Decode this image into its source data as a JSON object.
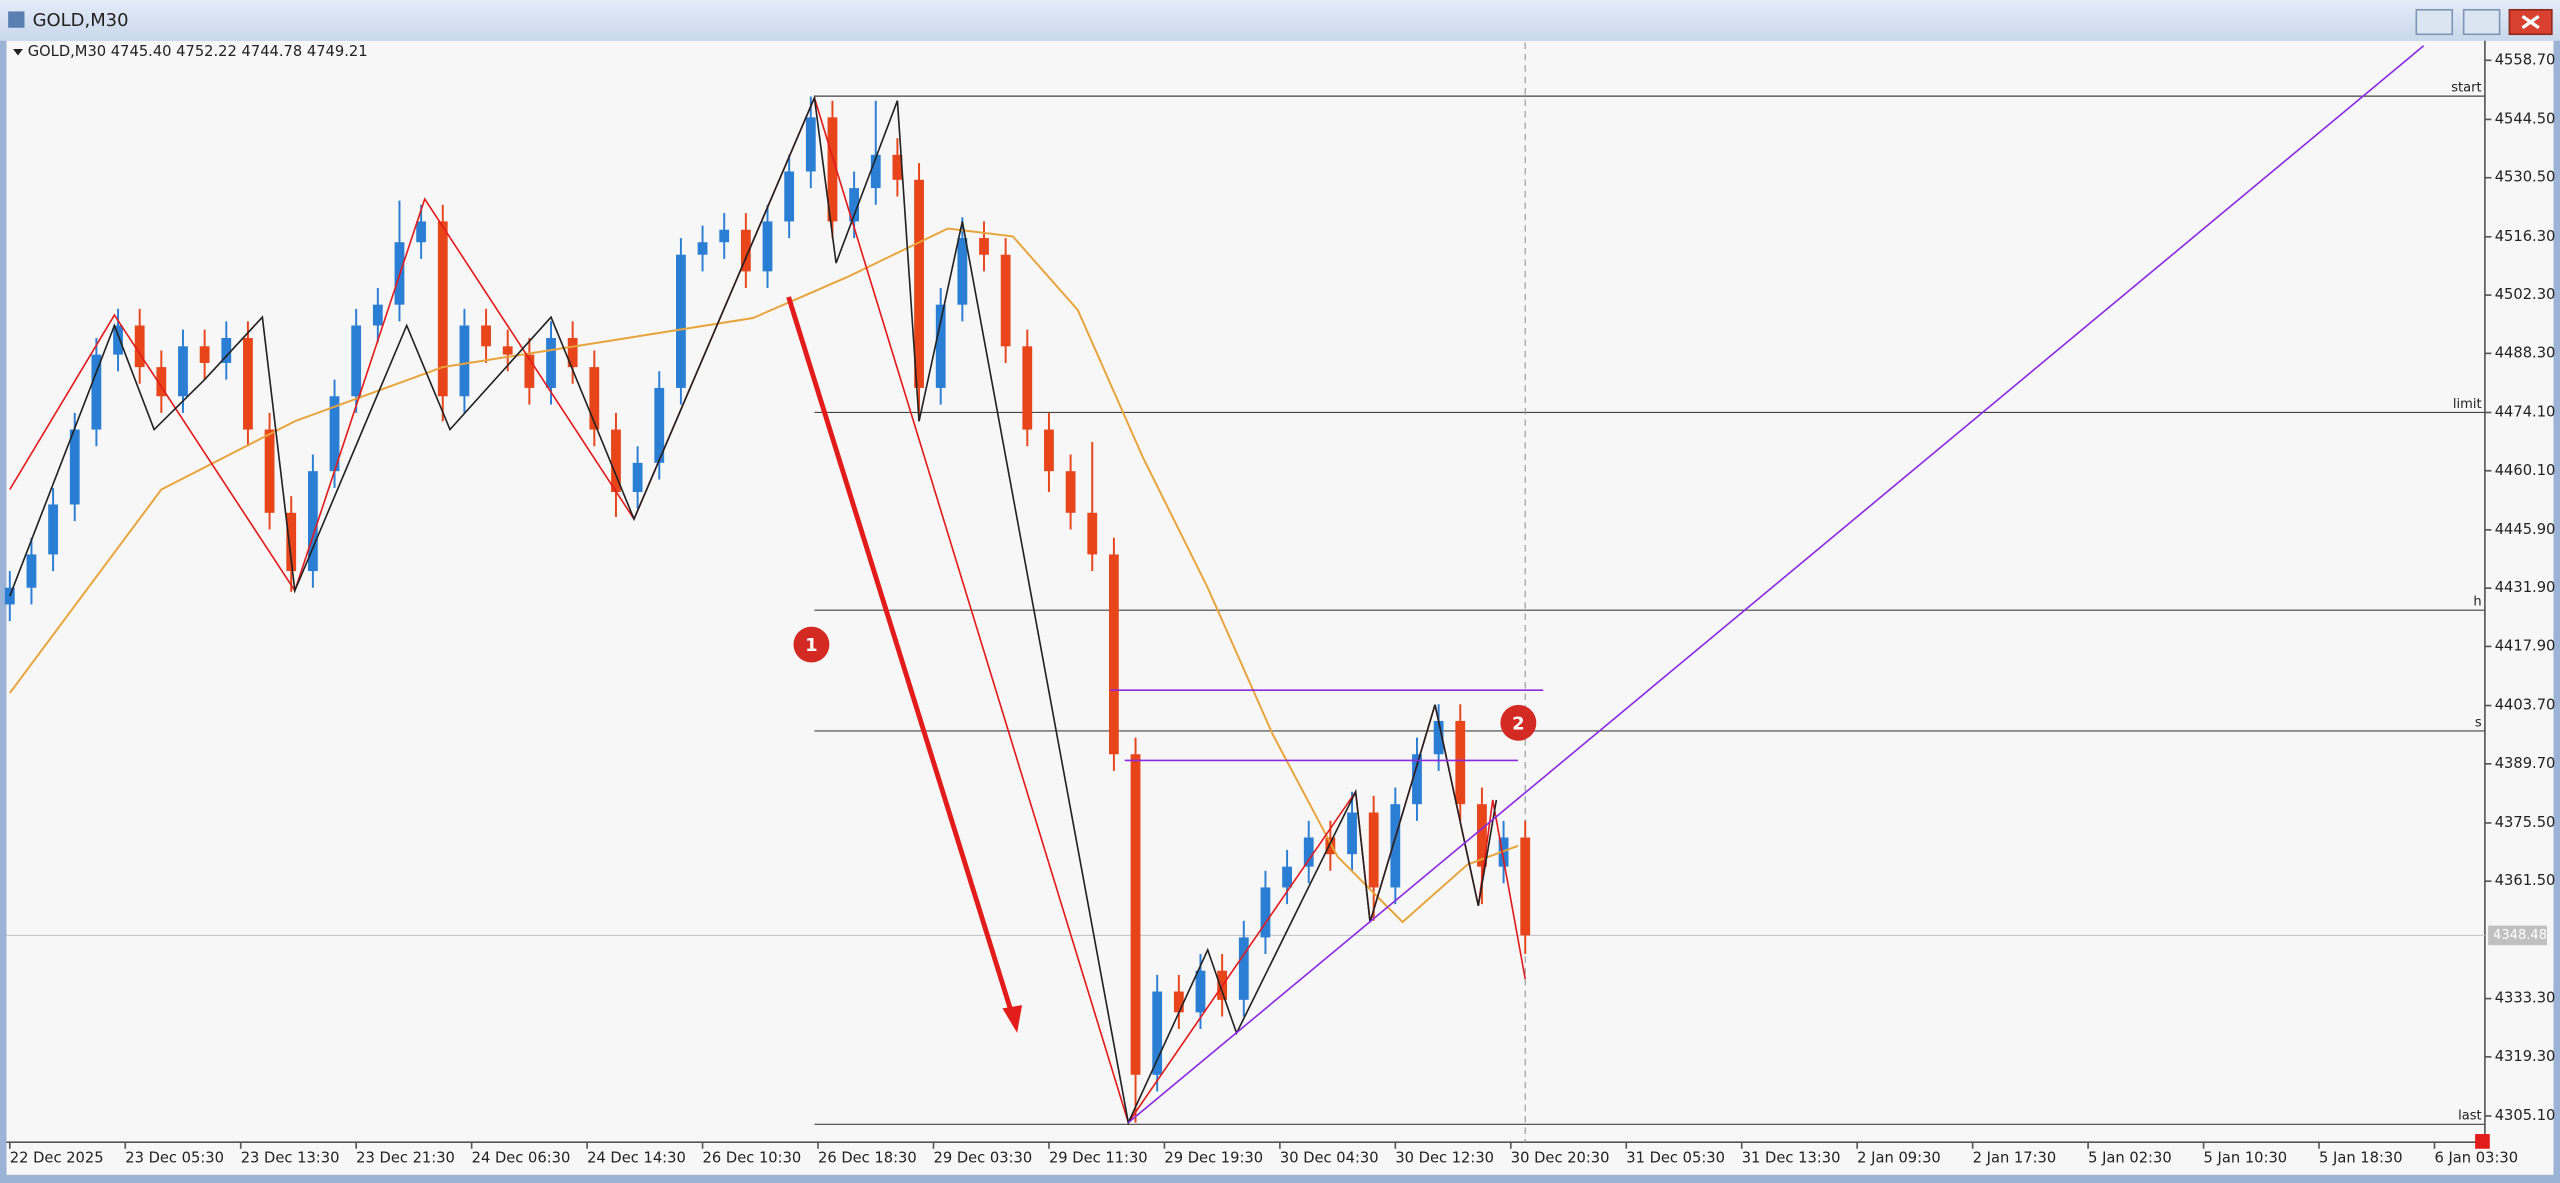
{
  "chart_data": {
    "type": "candlestick",
    "window_title": "GOLD,M30",
    "header": "GOLD,M30  4745.40 4752.22 4744.78 4749.21",
    "bull_color": "#2a7fd4",
    "bear_color": "#e8451a",
    "x": [
      0,
      3,
      6,
      9,
      12,
      15,
      18,
      21,
      24,
      27,
      30,
      33,
      36,
      39,
      42,
      45,
      48,
      51,
      54,
      57,
      60,
      63,
      66,
      69,
      72,
      75,
      78,
      81,
      84,
      87,
      90,
      93,
      96,
      99,
      102,
      105,
      108,
      111,
      114,
      117,
      120,
      123,
      126,
      129,
      132,
      135,
      138,
      141,
      144,
      147,
      150,
      153,
      156,
      159,
      162,
      165,
      168,
      171,
      174,
      177,
      180,
      183,
      186,
      189,
      192,
      195,
      198,
      201,
      204,
      207,
      210
    ],
    "open": [
      4428,
      4432,
      4440,
      4452,
      4470,
      4488,
      4495,
      4485,
      4478,
      4490,
      4486,
      4492,
      4470,
      4450,
      4436,
      4460,
      4478,
      4495,
      4500,
      4515,
      4520,
      4478,
      4495,
      4490,
      4488,
      4480,
      4492,
      4485,
      4470,
      4455,
      4462,
      4480,
      4512,
      4515,
      4518,
      4508,
      4520,
      4532,
      4545,
      4520,
      4528,
      4536,
      4530,
      4480,
      4500,
      4516,
      4512,
      4490,
      4470,
      4460,
      4450,
      4440,
      4392,
      4315,
      4335,
      4330,
      4340,
      4333,
      4348,
      4360,
      4365,
      4372,
      4368,
      4378,
      4360,
      4380,
      4392,
      4400,
      4380,
      4365,
      4372
    ],
    "high": [
      4436,
      4444,
      4456,
      4474,
      4492,
      4499,
      4499,
      4489,
      4494,
      4494,
      4496,
      4496,
      4474,
      4454,
      4464,
      4482,
      4499,
      4504,
      4525,
      4524,
      4524,
      4499,
      4499,
      4494,
      4492,
      4496,
      4496,
      4489,
      4474,
      4466,
      4484,
      4516,
      4519,
      4522,
      4522,
      4524,
      4536,
      4550,
      4549,
      4532,
      4549,
      4540,
      4534,
      4504,
      4521,
      4520,
      4516,
      4494,
      4474,
      4464,
      4467,
      4444,
      4396,
      4339,
      4339,
      4344,
      4344,
      4352,
      4364,
      4369,
      4376,
      4376,
      4383,
      4382,
      4384,
      4396,
      4404,
      4404,
      4384,
      4376,
      4376
    ],
    "low": [
      4424,
      4428,
      4436,
      4448,
      4466,
      4484,
      4481,
      4474,
      4474,
      4482,
      4482,
      4466,
      4446,
      4431,
      4432,
      4456,
      4474,
      4491,
      4496,
      4511,
      4472,
      4474,
      4486,
      4484,
      4476,
      4476,
      4481,
      4466,
      4449,
      4451,
      4458,
      4476,
      4508,
      4511,
      4504,
      4504,
      4516,
      4528,
      4516,
      4516,
      4524,
      4526,
      4472,
      4476,
      4496,
      4508,
      4486,
      4466,
      4455,
      4446,
      4436,
      4388,
      4303.5,
      4311,
      4326,
      4326,
      4329,
      4329,
      4344,
      4356,
      4361,
      4364,
      4364,
      4352,
      4356,
      4376,
      4388,
      4376,
      4356,
      4361,
      4344
    ],
    "close": [
      4432,
      4440,
      4452,
      4470,
      4488,
      4495,
      4485,
      4478,
      4490,
      4486,
      4492,
      4470,
      4450,
      4436,
      4460,
      4478,
      4495,
      4500,
      4515,
      4520,
      4478,
      4495,
      4490,
      4488,
      4480,
      4492,
      4485,
      4470,
      4455,
      4462,
      4480,
      4512,
      4515,
      4518,
      4508,
      4520,
      4532,
      4545,
      4520,
      4528,
      4536,
      4530,
      4480,
      4500,
      4516,
      4512,
      4490,
      4470,
      4460,
      4450,
      4440,
      4392,
      4315,
      4335,
      4330,
      4340,
      4333,
      4348,
      4360,
      4365,
      4372,
      4368,
      4378,
      4360,
      4380,
      4392,
      4400,
      4380,
      4365,
      4372,
      4348.48
    ],
    "lines": [
      {
        "color": "#e8a33a",
        "x": [
          0,
          21,
          39.5,
          60,
          84.5,
          103,
          116,
          130,
          139,
          148,
          157,
          166,
          175,
          184,
          193,
          202,
          209
        ],
        "values": [
          4406.7,
          4455.6,
          4472,
          4485,
          4491.7,
          4496.8,
          4506.6,
          4518.3,
          4516.4,
          4498.7,
          4463.4,
          4432,
          4396.8,
          4367.4,
          4351.7,
          4365.5,
          4370
        ]
      },
      {
        "color": "#e21b1b",
        "x": [
          0,
          14.5,
          39.5,
          57.5,
          86.5,
          111.5,
          155,
          186.5,
          188.5,
          197.5,
          203.5,
          205.5,
          210
        ],
        "values": [
          4455.6,
          4497.5,
          4431.3,
          4525.4,
          4448.5,
          4549.7,
          4303.5,
          4383,
          4351.7,
          4403.9,
          4355.6,
          4381,
          4338
        ]
      },
      {
        "color": "#222222",
        "x": [
          0,
          14.5,
          20,
          27,
          35,
          39.5,
          55,
          61,
          75,
          86.5,
          111.5,
          114.5,
          123,
          126,
          132,
          155,
          166,
          170,
          186.5,
          188.5,
          197.5,
          203.5,
          206
        ],
        "values": [
          4430,
          4495,
          4470,
          4482,
          4497,
          4431.3,
          4495,
          4470,
          4497,
          4448.5,
          4549.7,
          4510,
          4549,
          4472,
          4520,
          4303.5,
          4345,
          4325,
          4383,
          4351.7,
          4403.9,
          4355.6,
          4381
        ]
      },
      {
        "color": "#8a2be2",
        "x": [
          155,
          334.5
        ],
        "values": [
          4303.5,
          4562.2
        ]
      },
      {
        "color": "#8a2be2",
        "x": [
          152.5,
          212.5
        ],
        "values": [
          4407.4,
          4407.4
        ]
      },
      {
        "color": "#8a2be2",
        "x": [
          154.5,
          209
        ],
        "values": [
          4390.5,
          4390.5
        ]
      }
    ],
    "levels": [
      {
        "name": "start",
        "value": 4550.1
      },
      {
        "name": "limit",
        "value": 4474.1
      },
      {
        "name": "h",
        "value": 4426.6
      },
      {
        "name": "s",
        "value": 4397.6
      },
      {
        "name": "last",
        "value": 4303.1
      }
    ],
    "annotations": [
      "1",
      "2"
    ],
    "ylim": [
      4298.8,
      4563.0
    ],
    "yticks": [
      {
        "value": 4558.7,
        "label": "4558.70"
      },
      {
        "value": 4544.5,
        "label": "4544.50"
      },
      {
        "value": 4530.5,
        "label": "4530.50"
      },
      {
        "value": 4516.3,
        "label": "4516.30"
      },
      {
        "value": 4502.3,
        "label": "4502.30"
      },
      {
        "value": 4488.3,
        "label": "4488.30"
      },
      {
        "value": 4474.1,
        "label": "4474.10"
      },
      {
        "value": 4460.1,
        "label": "4460.10"
      },
      {
        "value": 4445.9,
        "label": "4445.90"
      },
      {
        "value": 4431.9,
        "label": "4431.90"
      },
      {
        "value": 4417.9,
        "label": "4417.90"
      },
      {
        "value": 4403.7,
        "label": "4403.70"
      },
      {
        "value": 4389.7,
        "label": "4389.70"
      },
      {
        "value": 4375.5,
        "label": "4375.50"
      },
      {
        "value": 4361.5,
        "label": "4361.50"
      },
      {
        "value": 4333.3,
        "label": "4333.30"
      },
      {
        "value": 4319.3,
        "label": "4319.30"
      },
      {
        "value": 4305.1,
        "label": "4305.10"
      }
    ],
    "xlim": [
      0,
      342
    ],
    "xticks": [
      {
        "value": 0,
        "label": "22 Dec 2025"
      },
      {
        "value": 16,
        "label": "23 Dec 05:30"
      },
      {
        "value": 32,
        "label": "23 Dec 13:30"
      },
      {
        "value": 48,
        "label": "23 Dec 21:30"
      },
      {
        "value": 64,
        "label": "24 Dec 06:30"
      },
      {
        "value": 80,
        "label": "24 Dec 14:30"
      },
      {
        "value": 96,
        "label": "26 Dec 10:30"
      },
      {
        "value": 112,
        "label": "26 Dec 18:30"
      },
      {
        "value": 128,
        "label": "29 Dec 03:30"
      },
      {
        "value": 144,
        "label": "29 Dec 11:30"
      },
      {
        "value": 160,
        "label": "29 Dec 19:30"
      },
      {
        "value": 176,
        "label": "30 Dec 04:30"
      },
      {
        "value": 192,
        "label": "30 Dec 12:30"
      },
      {
        "value": 208,
        "label": "30 Dec 20:30"
      },
      {
        "value": 224,
        "label": "31 Dec 05:30"
      },
      {
        "value": 240,
        "label": "31 Dec 13:30"
      },
      {
        "value": 256,
        "label": "2 Jan 09:30"
      },
      {
        "value": 272,
        "label": "2 Jan 17:30"
      },
      {
        "value": 288,
        "label": "5 Jan 02:30"
      },
      {
        "value": 304,
        "label": "5 Jan 10:30"
      },
      {
        "value": 320,
        "label": "5 Jan 18:30"
      },
      {
        "value": 336,
        "label": "6 Jan 03:30"
      }
    ]
  }
}
